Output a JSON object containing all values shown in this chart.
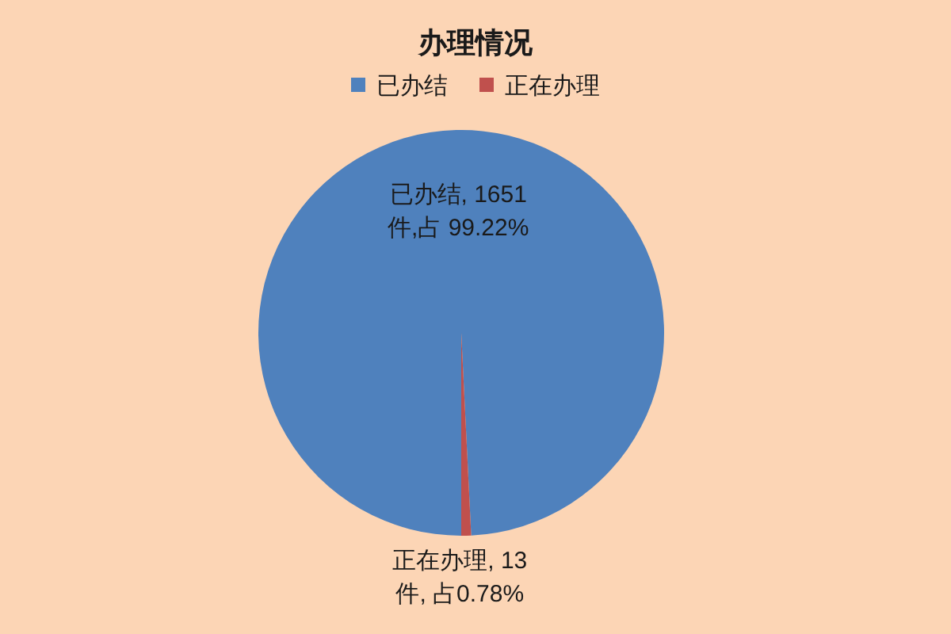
{
  "chart_data": {
    "type": "pie",
    "title": "办理情况",
    "categories": [
      "已办结",
      "正在办理"
    ],
    "values": [
      1651,
      13
    ],
    "colors": [
      "#4f81bd",
      "#c0504d"
    ],
    "legend": "top",
    "value_labels": [
      "已办结, 1651件,占 99.22%",
      "正在办理, 13件, 占0.78%"
    ]
  }
}
